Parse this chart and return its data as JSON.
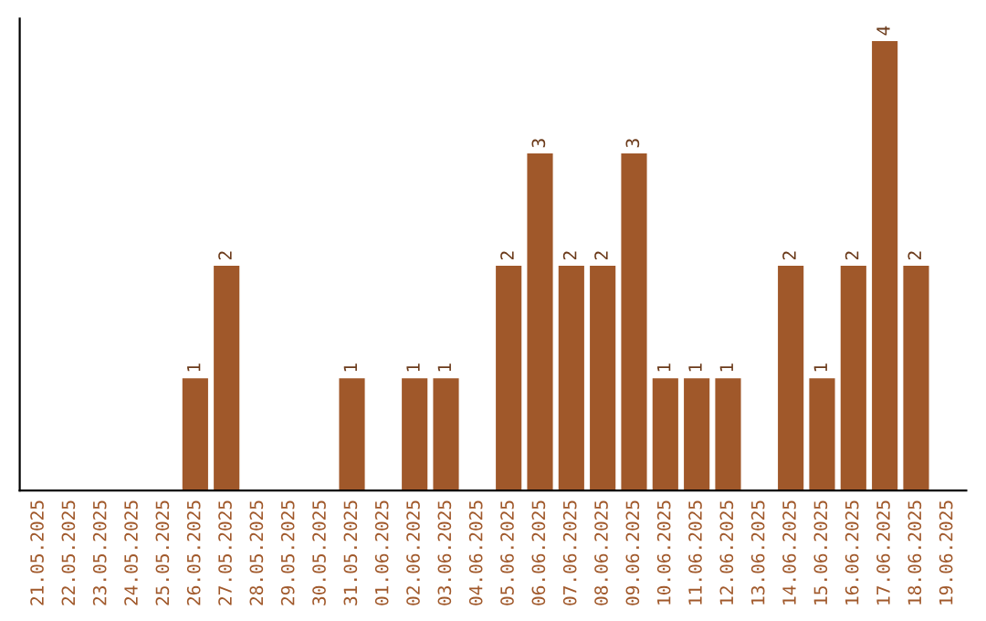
{
  "chart_data": {
    "type": "bar",
    "categories": [
      "21.05.2025",
      "22.05.2025",
      "23.05.2025",
      "24.05.2025",
      "25.05.2025",
      "26.05.2025",
      "27.05.2025",
      "28.05.2025",
      "29.05.2025",
      "30.05.2025",
      "31.05.2025",
      "01.06.2025",
      "02.06.2025",
      "03.06.2025",
      "04.06.2025",
      "05.06.2025",
      "06.06.2025",
      "07.06.2025",
      "08.06.2025",
      "09.06.2025",
      "10.06.2025",
      "11.06.2025",
      "12.06.2025",
      "13.06.2025",
      "14.06.2025",
      "15.06.2025",
      "16.06.2025",
      "17.06.2025",
      "18.06.2025",
      "19.06.2025"
    ],
    "values": [
      0,
      0,
      0,
      0,
      0,
      1,
      2,
      0,
      0,
      0,
      1,
      0,
      1,
      1,
      0,
      2,
      3,
      2,
      2,
      3,
      1,
      1,
      1,
      0,
      2,
      1,
      2,
      4,
      2,
      0
    ],
    "value_labels": [
      null,
      null,
      null,
      null,
      null,
      "1",
      "2",
      null,
      null,
      null,
      "1",
      null,
      "1",
      "1",
      null,
      "2",
      "3",
      "2",
      "2",
      "3",
      "1",
      "1",
      "1",
      null,
      "2",
      "1",
      "2",
      "4",
      "2",
      null
    ],
    "color": "#a0582a",
    "tick_labels": "x",
    "grid": false
  }
}
